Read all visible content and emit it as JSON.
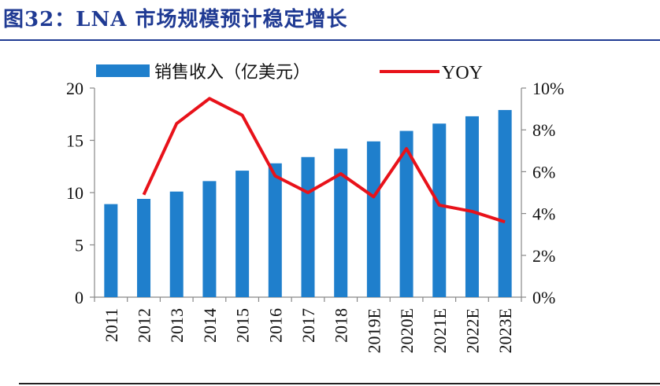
{
  "title": "图32：LNA 市场规模预计稳定增长",
  "chart_data": {
    "type": "bar+line",
    "categories": [
      "2011",
      "2012",
      "2013",
      "2014",
      "2015",
      "2016",
      "2017",
      "2018",
      "2019E",
      "2020E",
      "2021E",
      "2022E",
      "2023E"
    ],
    "series": [
      {
        "name": "销售收入（亿美元）",
        "type": "bar",
        "axis": "left",
        "values": [
          8.9,
          9.4,
          10.1,
          11.1,
          12.1,
          12.8,
          13.4,
          14.2,
          14.9,
          15.9,
          16.6,
          17.3,
          17.9
        ]
      },
      {
        "name": "YOY",
        "type": "line",
        "axis": "right",
        "values": [
          null,
          0.049,
          0.083,
          0.095,
          0.087,
          0.058,
          0.05,
          0.059,
          0.048,
          0.071,
          0.044,
          0.041,
          0.036
        ]
      }
    ],
    "left_axis": {
      "ylim": [
        0,
        20
      ],
      "ticks": [
        "0",
        "5",
        "10",
        "15",
        "20"
      ]
    },
    "right_axis": {
      "ylim": [
        0,
        0.1
      ],
      "ticks": [
        "0%",
        "2%",
        "4%",
        "6%",
        "8%",
        "10%"
      ]
    },
    "colors": {
      "bar": "#1f7fcc",
      "line": "#e8121a",
      "title": "#1f3a93"
    },
    "legend_position": "top"
  }
}
